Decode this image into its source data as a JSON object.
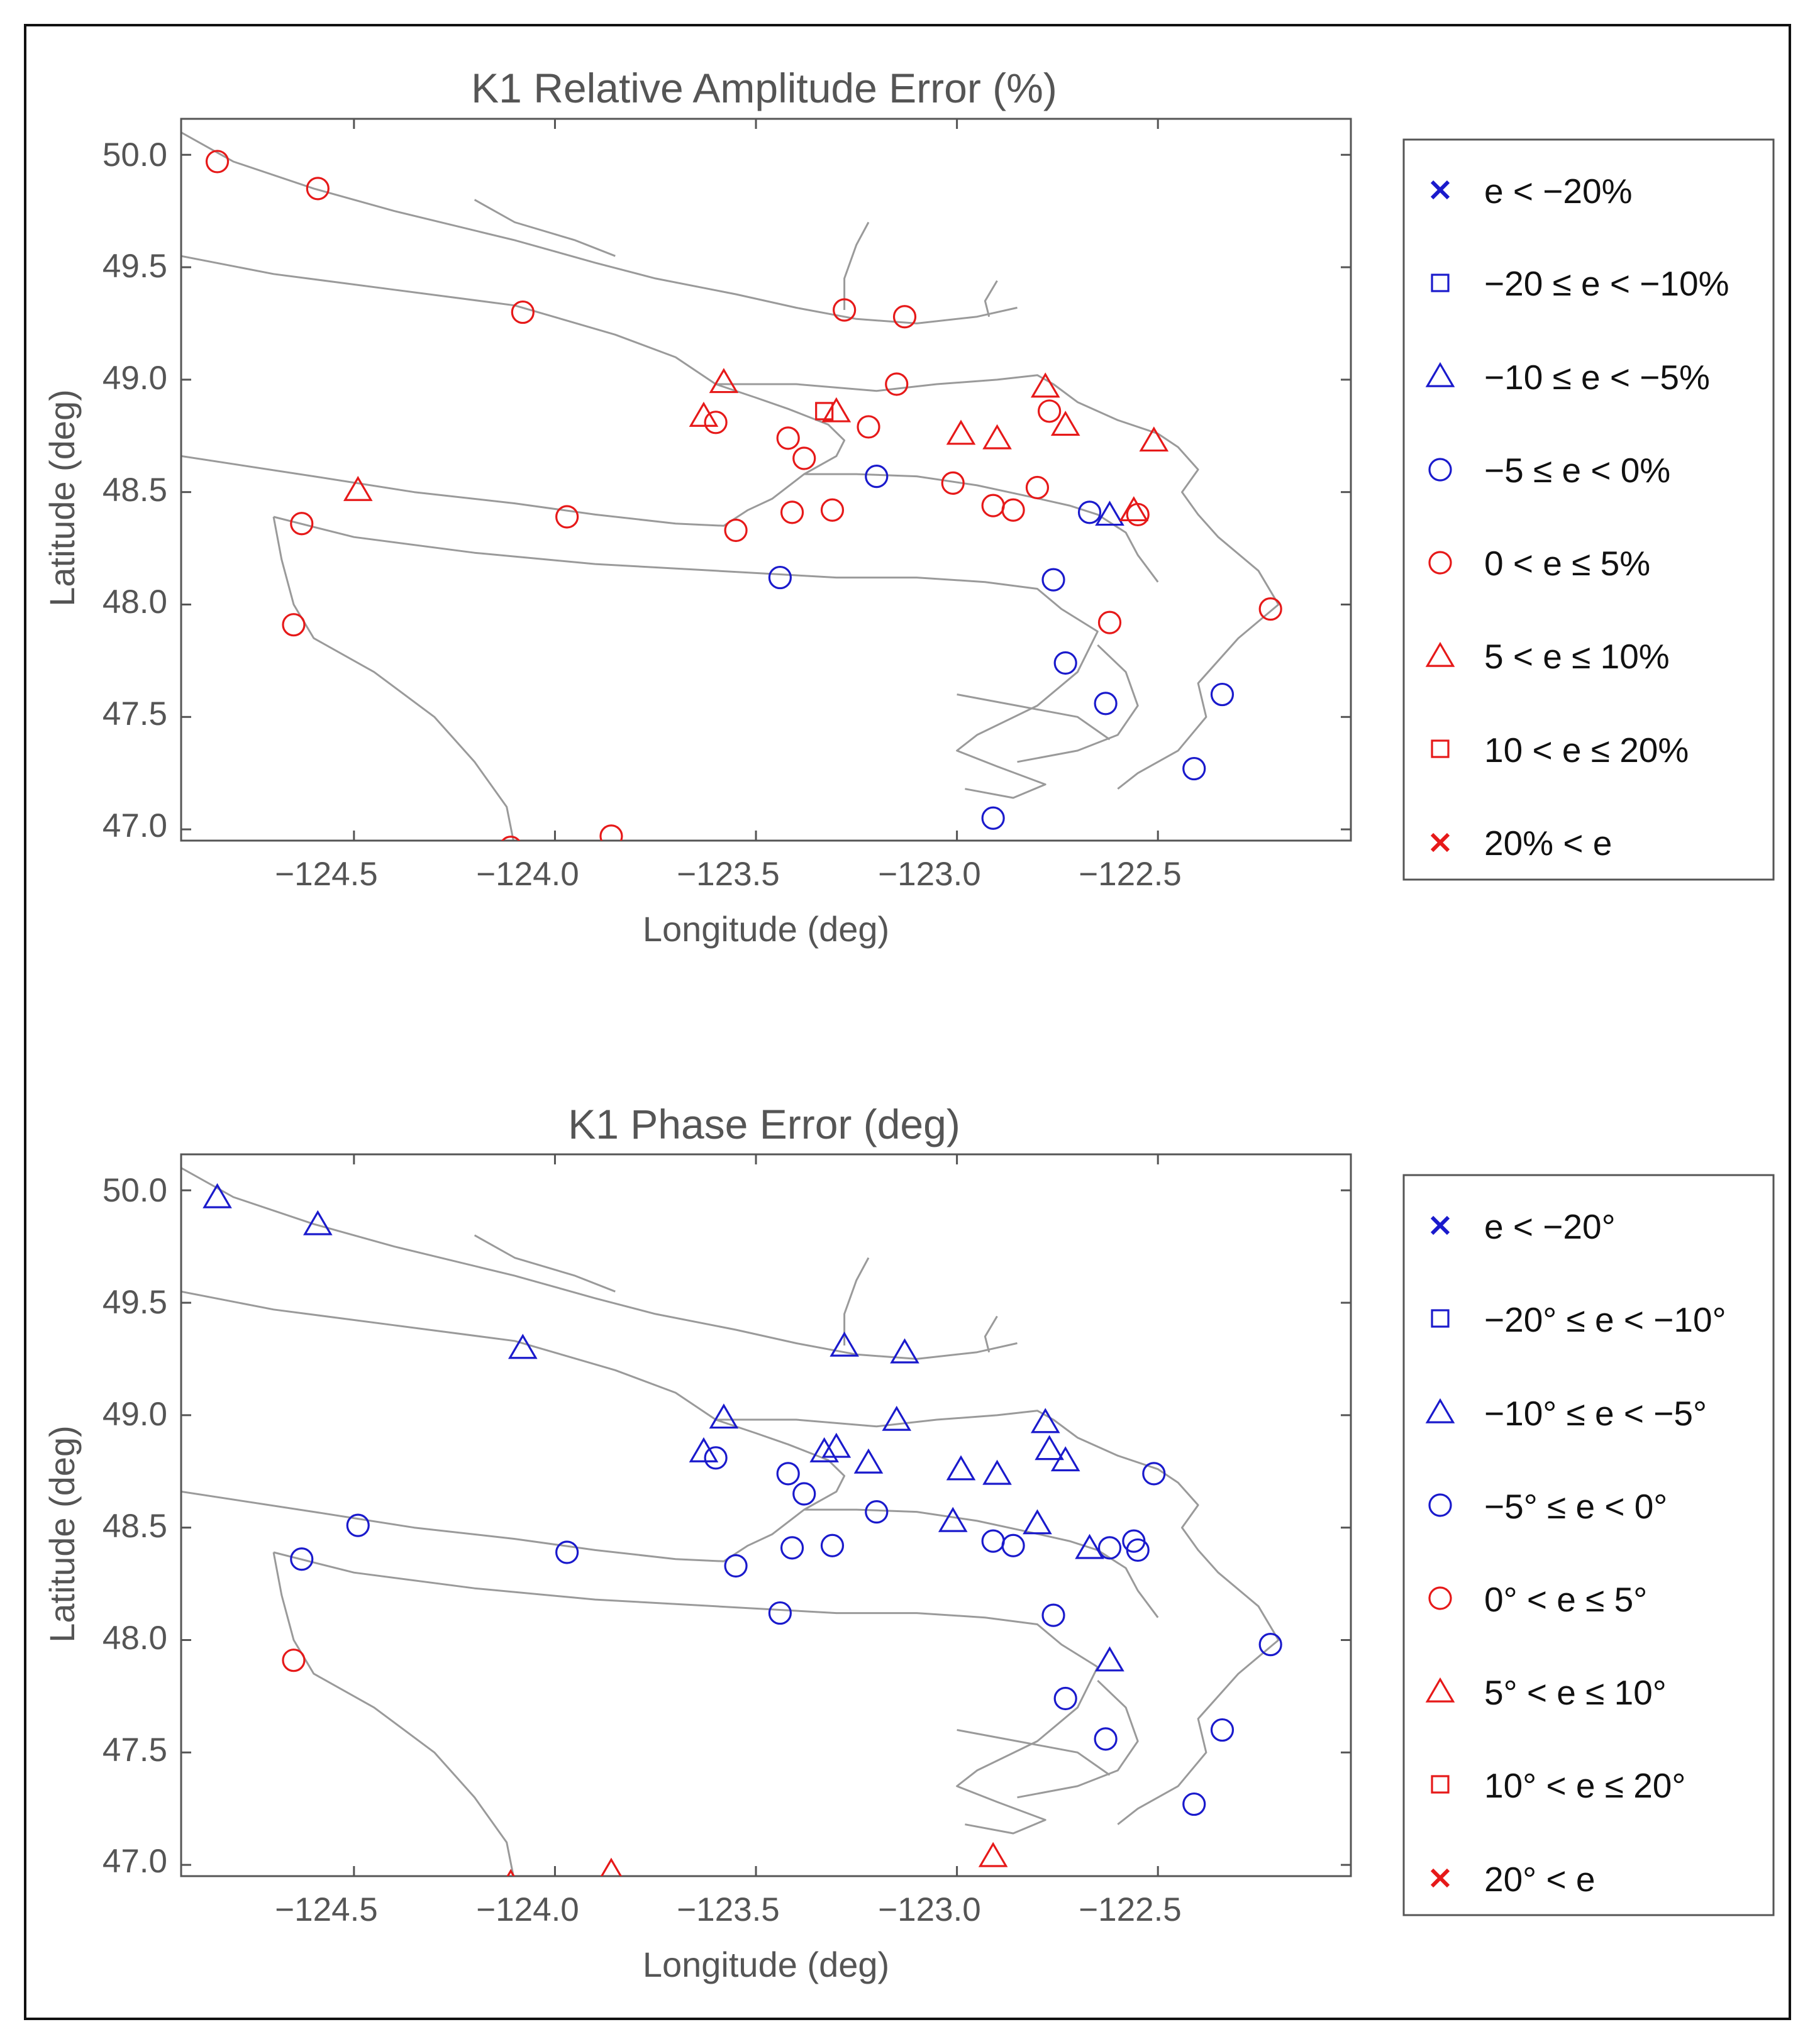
{
  "colors": {
    "blue": "#1a1acc",
    "red": "#e61919",
    "coast": "#9a9a9a",
    "axis": "#555555"
  },
  "chart_data": [
    {
      "type": "scatter",
      "title": "K1 Relative Amplitude Error (%)",
      "xlabel": "Longitude (deg)",
      "ylabel": "Latitude (deg)",
      "xlim": [
        -124.93,
        -122.02
      ],
      "ylim": [
        46.95,
        50.16
      ],
      "xticks": [
        -124.5,
        -124.0,
        -123.5,
        -123.0,
        -122.5
      ],
      "xtick_labels": [
        "−124.5",
        "−124.0",
        "−123.5",
        "−123.0",
        "−122.5"
      ],
      "yticks": [
        47.0,
        47.5,
        48.0,
        48.5,
        49.0,
        49.5,
        50.0
      ],
      "ytick_labels": [
        "47.0",
        "47.5",
        "48.0",
        "48.5",
        "49.0",
        "49.5",
        "50.0"
      ],
      "legend": [
        {
          "label": "e < −20%",
          "marker": "cross",
          "color": "blue"
        },
        {
          "label": "−20 ≤ e < −10%",
          "marker": "square",
          "color": "blue"
        },
        {
          "label": "−10 ≤ e < −5%",
          "marker": "triangle",
          "color": "blue"
        },
        {
          "label": "−5 ≤ e < 0%",
          "marker": "circle",
          "color": "blue"
        },
        {
          "label": "0 < e ≤ 5%",
          "marker": "circle",
          "color": "red"
        },
        {
          "label": "5 < e ≤ 10%",
          "marker": "triangle",
          "color": "red"
        },
        {
          "label": "10 < e ≤ 20%",
          "marker": "square",
          "color": "red"
        },
        {
          "label": "20% < e",
          "marker": "cross",
          "color": "red"
        }
      ],
      "points": [
        {
          "lon": -124.84,
          "lat": 49.97,
          "cls": 4
        },
        {
          "lon": -124.59,
          "lat": 49.85,
          "cls": 4
        },
        {
          "lon": -124.08,
          "lat": 49.3,
          "cls": 4
        },
        {
          "lon": -123.28,
          "lat": 49.31,
          "cls": 4
        },
        {
          "lon": -123.13,
          "lat": 49.28,
          "cls": 4
        },
        {
          "lon": -123.58,
          "lat": 48.99,
          "cls": 5
        },
        {
          "lon": -123.15,
          "lat": 48.98,
          "cls": 4
        },
        {
          "lon": -122.78,
          "lat": 48.97,
          "cls": 5
        },
        {
          "lon": -123.63,
          "lat": 48.84,
          "cls": 5
        },
        {
          "lon": -123.6,
          "lat": 48.81,
          "cls": 4
        },
        {
          "lon": -123.33,
          "lat": 48.86,
          "cls": 6
        },
        {
          "lon": -123.3,
          "lat": 48.86,
          "cls": 5
        },
        {
          "lon": -123.22,
          "lat": 48.79,
          "cls": 4
        },
        {
          "lon": -122.77,
          "lat": 48.86,
          "cls": 4
        },
        {
          "lon": -122.73,
          "lat": 48.8,
          "cls": 5
        },
        {
          "lon": -122.99,
          "lat": 48.76,
          "cls": 5
        },
        {
          "lon": -122.9,
          "lat": 48.74,
          "cls": 5
        },
        {
          "lon": -122.51,
          "lat": 48.73,
          "cls": 5
        },
        {
          "lon": -123.42,
          "lat": 48.74,
          "cls": 4
        },
        {
          "lon": -123.38,
          "lat": 48.65,
          "cls": 4
        },
        {
          "lon": -123.2,
          "lat": 48.57,
          "cls": 3
        },
        {
          "lon": -123.01,
          "lat": 48.54,
          "cls": 4
        },
        {
          "lon": -122.8,
          "lat": 48.52,
          "cls": 4
        },
        {
          "lon": -124.49,
          "lat": 48.51,
          "cls": 5
        },
        {
          "lon": -122.91,
          "lat": 48.44,
          "cls": 4
        },
        {
          "lon": -122.86,
          "lat": 48.42,
          "cls": 4
        },
        {
          "lon": -122.67,
          "lat": 48.41,
          "cls": 3
        },
        {
          "lon": -122.62,
          "lat": 48.4,
          "cls": 2
        },
        {
          "lon": -122.56,
          "lat": 48.42,
          "cls": 5
        },
        {
          "lon": -122.55,
          "lat": 48.4,
          "cls": 4
        },
        {
          "lon": -123.31,
          "lat": 48.42,
          "cls": 4
        },
        {
          "lon": -123.41,
          "lat": 48.41,
          "cls": 4
        },
        {
          "lon": -123.97,
          "lat": 48.39,
          "cls": 4
        },
        {
          "lon": -124.63,
          "lat": 48.36,
          "cls": 4
        },
        {
          "lon": -123.55,
          "lat": 48.33,
          "cls": 4
        },
        {
          "lon": -123.44,
          "lat": 48.12,
          "cls": 3
        },
        {
          "lon": -122.76,
          "lat": 48.11,
          "cls": 3
        },
        {
          "lon": -122.22,
          "lat": 47.98,
          "cls": 4
        },
        {
          "lon": -122.62,
          "lat": 47.92,
          "cls": 4
        },
        {
          "lon": -124.65,
          "lat": 47.91,
          "cls": 4
        },
        {
          "lon": -122.73,
          "lat": 47.74,
          "cls": 3
        },
        {
          "lon": -122.34,
          "lat": 47.6,
          "cls": 3
        },
        {
          "lon": -122.63,
          "lat": 47.56,
          "cls": 3
        },
        {
          "lon": -122.41,
          "lat": 47.27,
          "cls": 3
        },
        {
          "lon": -122.91,
          "lat": 47.05,
          "cls": 3
        },
        {
          "lon": -123.86,
          "lat": 46.97,
          "cls": 4
        },
        {
          "lon": -124.11,
          "lat": 46.92,
          "cls": 4
        }
      ]
    },
    {
      "type": "scatter",
      "title": "K1 Phase Error (deg)",
      "xlabel": "Longitude (deg)",
      "ylabel": "Latitude (deg)",
      "xlim": [
        -124.93,
        -122.02
      ],
      "ylim": [
        46.95,
        50.16
      ],
      "xticks": [
        -124.5,
        -124.0,
        -123.5,
        -123.0,
        -122.5
      ],
      "xtick_labels": [
        "−124.5",
        "−124.0",
        "−123.5",
        "−123.0",
        "−122.5"
      ],
      "yticks": [
        47.0,
        47.5,
        48.0,
        48.5,
        49.0,
        49.5,
        50.0
      ],
      "ytick_labels": [
        "47.0",
        "47.5",
        "48.0",
        "48.5",
        "49.0",
        "49.5",
        "50.0"
      ],
      "legend": [
        {
          "label": "e < −20°",
          "marker": "cross",
          "color": "blue"
        },
        {
          "label": "−20° ≤ e < −10°",
          "marker": "square",
          "color": "blue"
        },
        {
          "label": "−10° ≤ e < −5°",
          "marker": "triangle",
          "color": "blue"
        },
        {
          "label": "−5° ≤ e < 0°",
          "marker": "circle",
          "color": "blue"
        },
        {
          "label": "0° < e ≤ 5°",
          "marker": "circle",
          "color": "red"
        },
        {
          "label": "5° < e ≤ 10°",
          "marker": "triangle",
          "color": "red"
        },
        {
          "label": "10° < e ≤ 20°",
          "marker": "square",
          "color": "red"
        },
        {
          "label": "20° < e",
          "marker": "cross",
          "color": "red"
        }
      ],
      "points": [
        {
          "lon": -124.84,
          "lat": 49.97,
          "cls": 2
        },
        {
          "lon": -124.59,
          "lat": 49.85,
          "cls": 2
        },
        {
          "lon": -124.08,
          "lat": 49.3,
          "cls": 2
        },
        {
          "lon": -123.28,
          "lat": 49.31,
          "cls": 2
        },
        {
          "lon": -123.13,
          "lat": 49.28,
          "cls": 2
        },
        {
          "lon": -123.58,
          "lat": 48.99,
          "cls": 2
        },
        {
          "lon": -123.15,
          "lat": 48.98,
          "cls": 2
        },
        {
          "lon": -122.78,
          "lat": 48.97,
          "cls": 2
        },
        {
          "lon": -123.63,
          "lat": 48.84,
          "cls": 2
        },
        {
          "lon": -123.6,
          "lat": 48.81,
          "cls": 3
        },
        {
          "lon": -123.33,
          "lat": 48.84,
          "cls": 2
        },
        {
          "lon": -123.3,
          "lat": 48.86,
          "cls": 2
        },
        {
          "lon": -123.22,
          "lat": 48.79,
          "cls": 2
        },
        {
          "lon": -122.77,
          "lat": 48.85,
          "cls": 2
        },
        {
          "lon": -122.73,
          "lat": 48.8,
          "cls": 2
        },
        {
          "lon": -122.99,
          "lat": 48.76,
          "cls": 2
        },
        {
          "lon": -122.9,
          "lat": 48.74,
          "cls": 2
        },
        {
          "lon": -122.51,
          "lat": 48.74,
          "cls": 3
        },
        {
          "lon": -123.42,
          "lat": 48.74,
          "cls": 3
        },
        {
          "lon": -123.38,
          "lat": 48.65,
          "cls": 3
        },
        {
          "lon": -123.2,
          "lat": 48.57,
          "cls": 3
        },
        {
          "lon": -123.01,
          "lat": 48.53,
          "cls": 2
        },
        {
          "lon": -122.8,
          "lat": 48.52,
          "cls": 2
        },
        {
          "lon": -124.49,
          "lat": 48.51,
          "cls": 3
        },
        {
          "lon": -122.91,
          "lat": 48.44,
          "cls": 3
        },
        {
          "lon": -122.86,
          "lat": 48.42,
          "cls": 3
        },
        {
          "lon": -122.67,
          "lat": 48.41,
          "cls": 2
        },
        {
          "lon": -122.62,
          "lat": 48.41,
          "cls": 3
        },
        {
          "lon": -122.56,
          "lat": 48.44,
          "cls": 3
        },
        {
          "lon": -122.55,
          "lat": 48.4,
          "cls": 3
        },
        {
          "lon": -123.31,
          "lat": 48.42,
          "cls": 3
        },
        {
          "lon": -123.41,
          "lat": 48.41,
          "cls": 3
        },
        {
          "lon": -123.97,
          "lat": 48.39,
          "cls": 3
        },
        {
          "lon": -124.63,
          "lat": 48.36,
          "cls": 3
        },
        {
          "lon": -123.55,
          "lat": 48.33,
          "cls": 3
        },
        {
          "lon": -123.44,
          "lat": 48.12,
          "cls": 3
        },
        {
          "lon": -122.76,
          "lat": 48.11,
          "cls": 3
        },
        {
          "lon": -122.22,
          "lat": 47.98,
          "cls": 3
        },
        {
          "lon": -122.62,
          "lat": 47.91,
          "cls": 2
        },
        {
          "lon": -124.65,
          "lat": 47.91,
          "cls": 4
        },
        {
          "lon": -122.73,
          "lat": 47.74,
          "cls": 3
        },
        {
          "lon": -122.34,
          "lat": 47.6,
          "cls": 3
        },
        {
          "lon": -122.63,
          "lat": 47.56,
          "cls": 3
        },
        {
          "lon": -122.41,
          "lat": 47.27,
          "cls": 3
        },
        {
          "lon": -122.91,
          "lat": 47.04,
          "cls": 5
        },
        {
          "lon": -123.86,
          "lat": 46.97,
          "cls": 5
        },
        {
          "lon": -124.11,
          "lat": 46.92,
          "cls": 5
        }
      ]
    }
  ]
}
